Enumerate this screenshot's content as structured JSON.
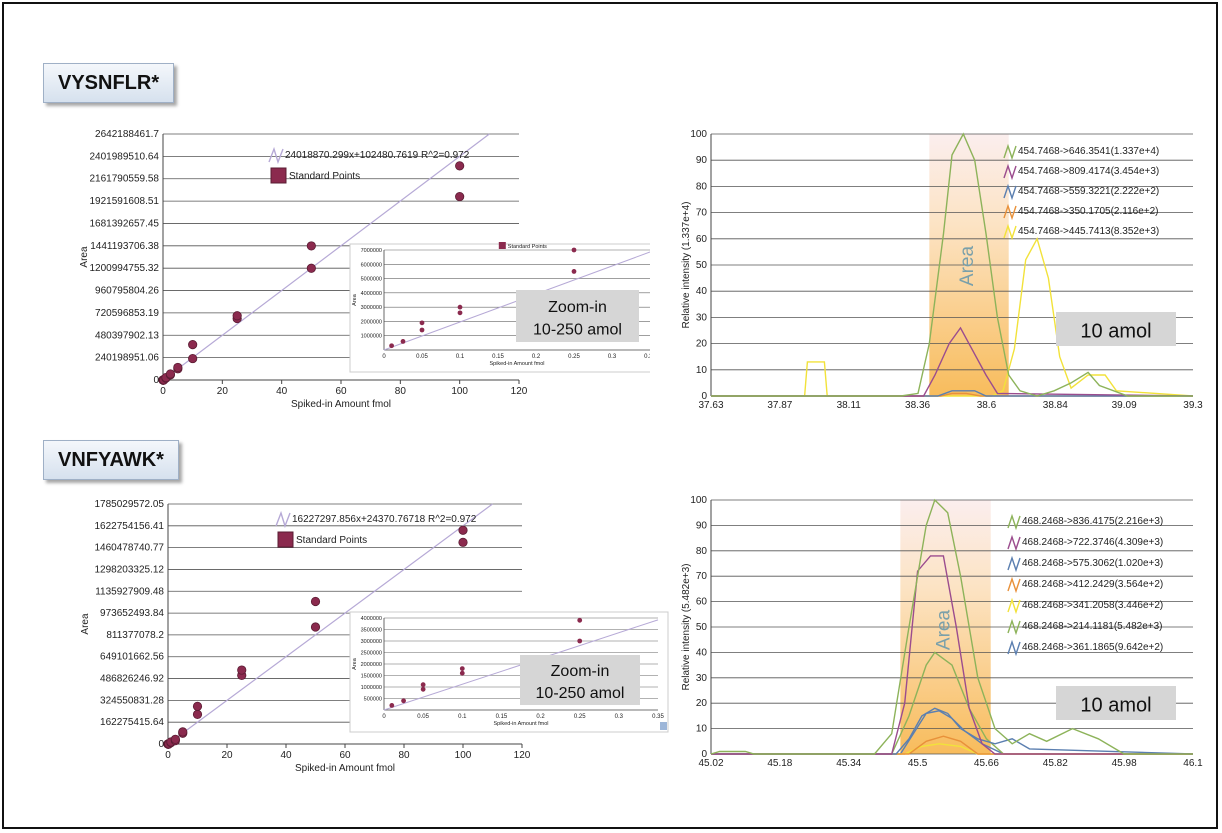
{
  "peptides": [
    {
      "name": "VYSNFLR*",
      "calib": {
        "ytick_labels": [
          "2642188461.7",
          "2401989510.64",
          "2161790559.58",
          "1921591608.51",
          "1681392657.45",
          "1441193706.38",
          "1200994755.32",
          "960795804.26",
          "720596853.19",
          "480397902.13",
          "240198951.06",
          "0"
        ],
        "equation": "24018870.299x+102480.7619  R^2=0.972",
        "legend_label": "Standard Points",
        "xlabel": "Spiked-in Amount fmol",
        "ylabel": "Area",
        "inset_note": [
          "Zoom-in",
          "10-250 amol"
        ]
      },
      "xic": {
        "ylabel": "Relative intensity (1.337e+4)",
        "area_label": "Area",
        "amount_label": "10 amol",
        "xtick_labels": [
          "37.63",
          "37.87",
          "38.11",
          "38.36",
          "38.6",
          "38.84",
          "39.09",
          "39.3"
        ],
        "legend": [
          {
            "label": "454.7468->646.3541(1.337e+4)",
            "color": "#8db35a"
          },
          {
            "label": "454.7468->809.4174(3.454e+3)",
            "color": "#9b4c8e"
          },
          {
            "label": "454.7468->559.3221(2.222e+2)",
            "color": "#5b7fb0"
          },
          {
            "label": "454.7468->350.1705(2.116e+2)",
            "color": "#e8913a"
          },
          {
            "label": "454.7468->445.7413(8.352e+3)",
            "color": "#f2e23a"
          }
        ]
      }
    },
    {
      "name": "VNFYAWK*",
      "calib": {
        "ytick_labels": [
          "1785029572.05",
          "1622754156.41",
          "1460478740.77",
          "1298203325.12",
          "1135927909.48",
          "973652493.84",
          "811377078.2",
          "649101662.56",
          "486826246.92",
          "324550831.28",
          "162275415.64",
          "0"
        ],
        "equation": "16227297.856x+24370.76718  R^2=0.972",
        "legend_label": "Standard Points",
        "xlabel": "Spiked-in Amount fmol",
        "ylabel": "Area",
        "inset_note": [
          "Zoom-in",
          "10-250 amol"
        ]
      },
      "xic": {
        "ylabel": "Relative intensity (5.482e+3)",
        "area_label": "Area",
        "amount_label": "10 amol",
        "xtick_labels": [
          "45.02",
          "45.18",
          "45.34",
          "45.5",
          "45.66",
          "45.82",
          "45.98",
          "46.1"
        ],
        "legend": [
          {
            "label": "468.2468->836.4175(2.216e+3)",
            "color": "#8db35a"
          },
          {
            "label": "468.2468->722.3746(4.309e+3)",
            "color": "#9b4c8e"
          },
          {
            "label": "468.2468->575.3062(1.020e+3)",
            "color": "#5b7fb0"
          },
          {
            "label": "468.2468->412.2429(3.564e+2)",
            "color": "#e8913a"
          },
          {
            "label": "468.2468->341.2058(3.446e+2)",
            "color": "#f2e23a"
          },
          {
            "label": "468.2468->214.1181(5.482e+3)",
            "color": "#8db35a"
          },
          {
            "label": "468.2468->361.1865(9.642e+2)",
            "color": "#5b7fb0"
          }
        ]
      }
    }
  ],
  "chart_data": [
    {
      "type": "scatter",
      "title": "VYSNFLR*",
      "xlabel": "Spiked-in Amount fmol",
      "ylabel": "Area",
      "xlim": [
        0,
        120
      ],
      "ylim": [
        0,
        2642188461.7
      ],
      "xticks": [
        0,
        20,
        40,
        60,
        80,
        100,
        120
      ],
      "fit": {
        "slope": 24018870.299,
        "intercept": 102480.7619,
        "r2": 0.972
      },
      "series": [
        {
          "name": "Standard Points",
          "x": [
            0.01,
            0.01,
            0.025,
            0.025,
            0.05,
            0.05,
            0.1,
            0.1,
            0.25,
            0.25,
            1,
            1,
            2.5,
            2.5,
            5,
            5,
            10,
            10,
            25,
            25,
            50,
            50,
            100,
            100
          ],
          "y": [
            0,
            0,
            0,
            0,
            0,
            0,
            0,
            0,
            0,
            0,
            20000000,
            26000000,
            55000000,
            65000000,
            120000000,
            135000000,
            230000000,
            380000000,
            660000000,
            690000000,
            1200000000,
            1440000000,
            1970000000,
            2300000000
          ]
        }
      ],
      "inset": {
        "xlim": [
          0,
          0.35
        ],
        "ylim": [
          0,
          7000000
        ],
        "xticks": [
          0,
          0.05,
          0.1,
          0.15,
          0.2,
          0.25,
          0.3,
          0.35
        ],
        "yticks": [
          1000000,
          2000000,
          3000000,
          4000000,
          5000000,
          6000000,
          7000000
        ],
        "xlabel": "Spiked-in Amount fmol",
        "legend_label": "Standard Points",
        "x": [
          0.01,
          0.025,
          0.05,
          0.05,
          0.1,
          0.1,
          0.25,
          0.25
        ],
        "y": [
          300000,
          600000,
          1400000,
          1900000,
          2600000,
          3000000,
          5500000,
          7000000
        ]
      }
    },
    {
      "type": "line",
      "title": "VYSNFLR*",
      "ylabel": "Relative intensity (1.337e+4)",
      "xlim": [
        37.63,
        39.33
      ],
      "ylim": [
        0,
        100
      ],
      "yticks": [
        0,
        10,
        20,
        30,
        40,
        50,
        60,
        70,
        80,
        90,
        100
      ],
      "area_range": [
        38.4,
        38.68
      ],
      "series": [
        {
          "name": "454.7468->646.3541(1.337e+4)",
          "x": [
            37.63,
            38.3,
            38.36,
            38.4,
            38.45,
            38.48,
            38.52,
            38.56,
            38.6,
            38.64,
            38.68,
            38.72,
            38.78,
            38.84,
            38.9,
            38.96,
            39.0,
            39.1,
            39.33
          ],
          "y": [
            0,
            0,
            1,
            20,
            62,
            92,
            100,
            90,
            62,
            30,
            8,
            2,
            0,
            2,
            5,
            9,
            4,
            0,
            0
          ]
        },
        {
          "name": "454.7468->809.4174(3.454e+3)",
          "x": [
            37.63,
            38.38,
            38.42,
            38.47,
            38.51,
            38.55,
            38.6,
            38.64,
            39.33
          ],
          "y": [
            0,
            0,
            8,
            20,
            26,
            18,
            8,
            1,
            0
          ]
        },
        {
          "name": "454.7468->559.3221(2.222e+2)",
          "x": [
            37.63,
            38.43,
            38.48,
            38.52,
            38.56,
            38.6,
            39.33
          ],
          "y": [
            0,
            0,
            2,
            2,
            2,
            0,
            0
          ]
        },
        {
          "name": "454.7468->350.1705(2.116e+2)",
          "x": [
            37.63,
            38.44,
            38.48,
            38.53,
            38.58,
            39.33
          ],
          "y": [
            0,
            0,
            1,
            1,
            0,
            0
          ]
        },
        {
          "name": "454.7468->445.7413(8.352e+3)",
          "x": [
            37.63,
            37.96,
            37.97,
            38.03,
            38.04,
            38.62,
            38.66,
            38.7,
            38.74,
            38.78,
            38.82,
            38.86,
            38.9,
            38.96,
            39.02,
            39.06,
            39.33
          ],
          "y": [
            0,
            0,
            13,
            13,
            0,
            0,
            2,
            18,
            52,
            60,
            45,
            15,
            3,
            8,
            8,
            2,
            0
          ]
        }
      ]
    },
    {
      "type": "scatter",
      "title": "VNFYAWK*",
      "xlabel": "Spiked-in Amount fmol",
      "ylabel": "Area",
      "xlim": [
        0,
        120
      ],
      "ylim": [
        0,
        1785029572.05
      ],
      "xticks": [
        0,
        20,
        40,
        60,
        80,
        100,
        120
      ],
      "fit": {
        "slope": 16227297.856,
        "intercept": 24370.76718,
        "r2": 0.972
      },
      "series": [
        {
          "name": "Standard Points",
          "x": [
            0.01,
            0.01,
            0.025,
            0.025,
            0.05,
            0.05,
            0.1,
            0.1,
            0.25,
            0.25,
            1,
            1,
            2.5,
            2.5,
            5,
            5,
            10,
            10,
            25,
            25,
            50,
            50,
            100,
            100
          ],
          "y": [
            0,
            0,
            0,
            0,
            0,
            0,
            0,
            0,
            0,
            0,
            10000000,
            15000000,
            25000000,
            35000000,
            80000000,
            90000000,
            220000000,
            280000000,
            510000000,
            550000000,
            870000000,
            1060000000,
            1500000000,
            1590000000
          ]
        }
      ],
      "inset": {
        "xlim": [
          0,
          0.35
        ],
        "ylim": [
          0,
          4000000
        ],
        "xticks": [
          0,
          0.05,
          0.1,
          0.15,
          0.2,
          0.25,
          0.3,
          0.35
        ],
        "yticks": [
          500000,
          1000000,
          1500000,
          2000000,
          2500000,
          3000000,
          3500000,
          4000000
        ],
        "xlabel": "Spiked-in Amount fmol",
        "x": [
          0.01,
          0.025,
          0.05,
          0.05,
          0.1,
          0.1,
          0.25,
          0.25
        ],
        "y": [
          200000,
          400000,
          900000,
          1100000,
          1600000,
          1800000,
          3000000,
          3900000
        ]
      }
    },
    {
      "type": "line",
      "title": "VNFYAWK*",
      "ylabel": "Relative intensity (5.482e+3)",
      "xlim": [
        45.02,
        46.14
      ],
      "ylim": [
        0,
        100
      ],
      "yticks": [
        0,
        10,
        20,
        30,
        40,
        50,
        60,
        70,
        80,
        90,
        100
      ],
      "area_range": [
        45.46,
        45.67
      ],
      "series": [
        {
          "name": "468.2468->836.4175(2.216e+3)",
          "x": [
            45.02,
            45.04,
            45.1,
            45.12,
            45.4,
            45.44,
            45.48,
            45.52,
            45.54,
            45.57,
            45.6,
            45.64,
            45.68,
            45.72,
            45.76,
            45.8,
            45.86,
            45.92,
            45.98,
            46.14
          ],
          "y": [
            0,
            1,
            1,
            0,
            0,
            8,
            50,
            90,
            100,
            95,
            70,
            30,
            10,
            4,
            8,
            5,
            10,
            6,
            0,
            0
          ]
        },
        {
          "name": "468.2468->722.3746(4.309e+3)",
          "x": [
            45.02,
            45.44,
            45.47,
            45.5,
            45.53,
            45.56,
            45.59,
            45.62,
            45.65,
            45.68,
            46.14
          ],
          "y": [
            0,
            0,
            20,
            72,
            78,
            78,
            50,
            18,
            4,
            0,
            0
          ]
        },
        {
          "name": "468.2468->575.3062(1.020e+3)",
          "x": [
            45.02,
            45.45,
            45.48,
            45.51,
            45.54,
            45.57,
            45.6,
            45.64,
            45.68,
            45.72,
            45.76,
            46.14
          ],
          "y": [
            0,
            0,
            6,
            15,
            18,
            16,
            10,
            6,
            4,
            6,
            2,
            0
          ]
        },
        {
          "name": "468.2468->412.2429(3.564e+2)",
          "x": [
            45.02,
            45.48,
            45.52,
            45.56,
            45.6,
            45.64,
            46.14
          ],
          "y": [
            0,
            0,
            5,
            7,
            5,
            0,
            0
          ]
        },
        {
          "name": "468.2468->341.2058(3.446e+2)",
          "x": [
            45.02,
            45.47,
            45.51,
            45.55,
            45.6,
            45.64,
            46.14
          ],
          "y": [
            0,
            0,
            3,
            4,
            3,
            0,
            0
          ]
        },
        {
          "name": "468.2468->214.1181(5.482e+3)",
          "x": [
            45.02,
            45.44,
            45.48,
            45.52,
            45.54,
            45.58,
            45.62,
            45.66,
            45.7,
            46.14
          ],
          "y": [
            0,
            0,
            15,
            35,
            40,
            35,
            18,
            6,
            0,
            0
          ]
        },
        {
          "name": "468.2468->361.1865(9.642e+2)",
          "x": [
            45.02,
            45.46,
            45.49,
            45.52,
            45.55,
            45.58,
            45.61,
            45.65,
            45.7,
            46.14
          ],
          "y": [
            0,
            0,
            8,
            16,
            17,
            14,
            9,
            4,
            0,
            0
          ]
        }
      ]
    }
  ]
}
